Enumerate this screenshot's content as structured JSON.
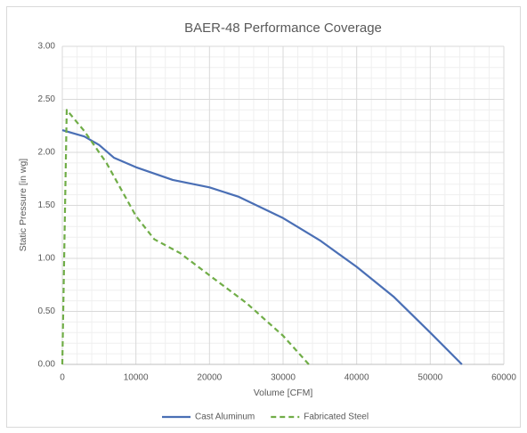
{
  "chart_data": {
    "type": "line",
    "title": "BAER-48 Performance Coverage",
    "x_label": "Volume [CFM]",
    "y_label": "Static Pressure [in wg]",
    "xlim": [
      0,
      60000
    ],
    "xticks": [
      0,
      10000,
      20000,
      30000,
      40000,
      50000,
      60000
    ],
    "ylim": [
      0,
      3
    ],
    "yticks": [
      {
        "value": 0,
        "label": "0.00"
      },
      {
        "value": 0.5,
        "label": "0.50"
      },
      {
        "value": 1,
        "label": "1.00"
      },
      {
        "value": 1.5,
        "label": "1.50"
      },
      {
        "value": 2,
        "label": "2.00"
      },
      {
        "value": 2.5,
        "label": "2.50"
      },
      {
        "value": 3,
        "label": "3.00"
      }
    ],
    "grid": true,
    "minor_grid": true,
    "legend": "bottom",
    "series": [
      {
        "name": "Cast Aluminum",
        "color": "#4a6fb5",
        "style": "solid",
        "x": [
          0,
          3000,
          5000,
          7000,
          10000,
          15000,
          20000,
          24000,
          30000,
          35000,
          40000,
          45000,
          50000,
          54300
        ],
        "values": [
          2.21,
          2.15,
          2.07,
          1.95,
          1.86,
          1.74,
          1.67,
          1.58,
          1.38,
          1.17,
          0.92,
          0.64,
          0.3,
          0
        ]
      },
      {
        "name": "Fabricated Steel",
        "color": "#70ad47",
        "style": "dashed",
        "x": [
          0,
          600,
          3000,
          6000,
          10000,
          12500,
          16000,
          20000,
          25000,
          30000,
          33500
        ],
        "values": [
          0,
          2.4,
          2.2,
          1.9,
          1.4,
          1.18,
          1.05,
          0.84,
          0.58,
          0.27,
          0
        ]
      }
    ]
  }
}
